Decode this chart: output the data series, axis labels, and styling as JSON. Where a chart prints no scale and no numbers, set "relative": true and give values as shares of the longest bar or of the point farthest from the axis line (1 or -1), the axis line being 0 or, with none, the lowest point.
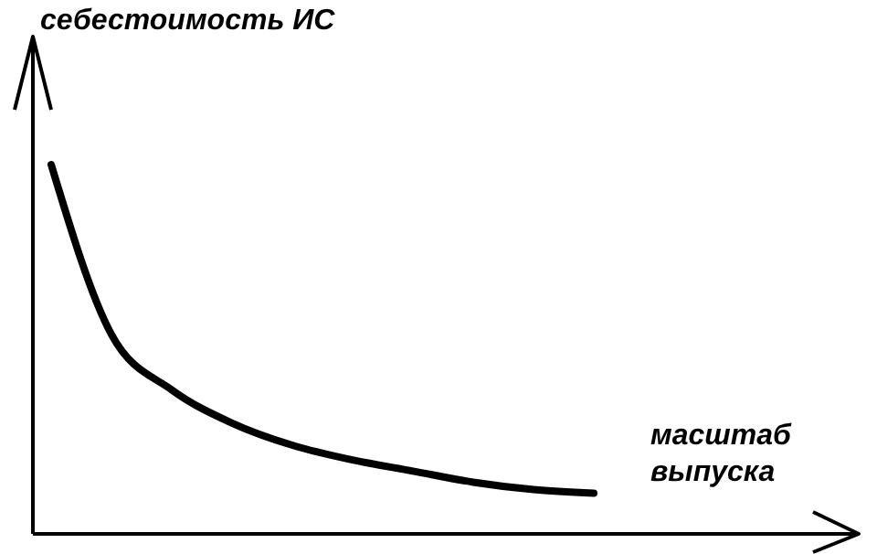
{
  "chart_data": {
    "type": "line",
    "relative": true,
    "ylabel": "себестоимость ИС",
    "xlabel": "масштаб выпуска",
    "categories": [
      null,
      null,
      null,
      null,
      null,
      null,
      null,
      null,
      null,
      null
    ],
    "values": [
      1,
      0.54,
      0.39,
      0.3,
      0.24,
      0.2,
      0.17,
      0.14,
      0.12,
      0.11
    ],
    "color": "#000000"
  }
}
